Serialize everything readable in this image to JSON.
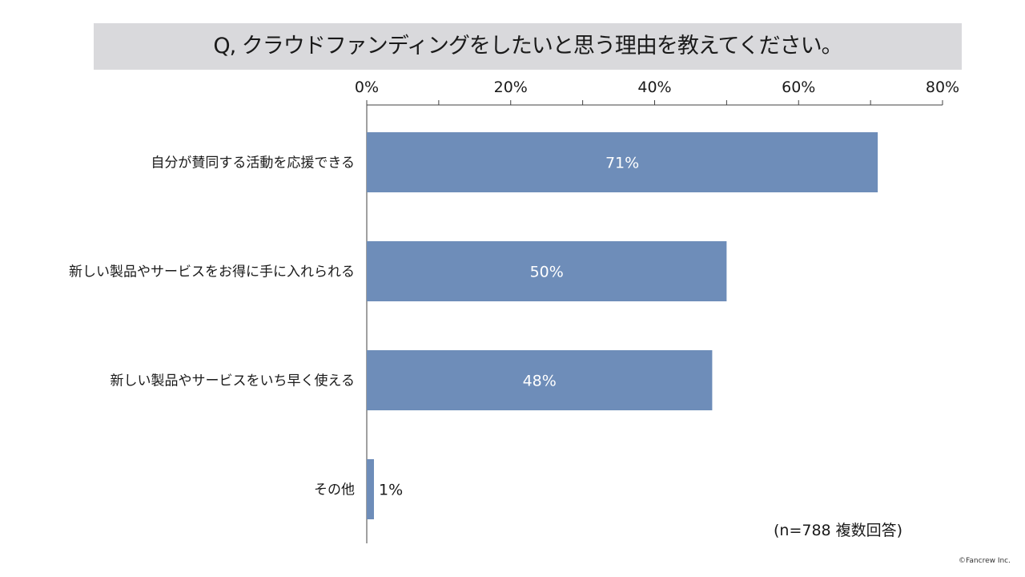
{
  "title": "Q, クラウドファンディングをしたいと思う理由を教えてください。",
  "note": "(n=788 複数回答)",
  "copyright": "©Fancrew Inc.",
  "colors": {
    "bar": "#6e8db9",
    "title_bg": "#d9d9dc",
    "axis": "#404040"
  },
  "chart_data": {
    "type": "bar",
    "orientation": "horizontal",
    "categories": [
      "自分が賛同する活動を応援できる",
      "新しい製品やサービスをお得に手に入れられる",
      "新しい製品やサービスをいち早く使える",
      "その他"
    ],
    "values": [
      71,
      50,
      48,
      1
    ],
    "data_labels": [
      "71%",
      "50%",
      "48%",
      "1%"
    ],
    "xlim": [
      0,
      80
    ],
    "x_ticks": [
      0,
      20,
      40,
      60,
      80
    ],
    "x_tick_labels": [
      "0%",
      "20%",
      "40%",
      "60%",
      "80%"
    ],
    "x_axis_position": "top",
    "grid": false,
    "legend": "none"
  }
}
